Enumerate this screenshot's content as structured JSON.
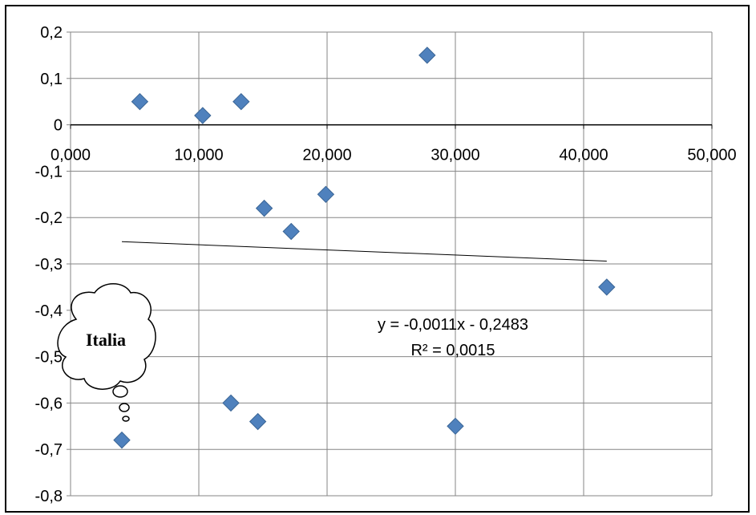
{
  "chart_data": {
    "type": "scatter",
    "x_ticks": [
      "0,000",
      "10,000",
      "20,000",
      "30,000",
      "40,000",
      "50,000"
    ],
    "y_ticks": [
      "0,2",
      "0,1",
      "0",
      "-0,1",
      "-0,2",
      "-0,3",
      "-0,4",
      "-0,5",
      "-0,6",
      "-0,7",
      "-0,8"
    ],
    "xlim": [
      0,
      50
    ],
    "ylim": [
      -0.8,
      0.2
    ],
    "grid": true,
    "points": [
      {
        "x": 4.0,
        "y": -0.68
      },
      {
        "x": 5.4,
        "y": 0.05
      },
      {
        "x": 10.3,
        "y": 0.02
      },
      {
        "x": 13.3,
        "y": 0.05
      },
      {
        "x": 12.5,
        "y": -0.6
      },
      {
        "x": 14.6,
        "y": -0.64
      },
      {
        "x": 15.1,
        "y": -0.18
      },
      {
        "x": 17.2,
        "y": -0.23
      },
      {
        "x": 19.9,
        "y": -0.15
      },
      {
        "x": 27.8,
        "y": 0.15
      },
      {
        "x": 30.0,
        "y": -0.65
      },
      {
        "x": 41.8,
        "y": -0.35
      }
    ],
    "trendline": {
      "x_range": [
        4.0,
        41.8
      ],
      "equation": "y = -0,0011x - 0,2483",
      "r_squared": "R² = 0,0015"
    },
    "annotation": {
      "text": "Italia",
      "point_index": 0
    },
    "marker_color": "#4f81bd"
  }
}
